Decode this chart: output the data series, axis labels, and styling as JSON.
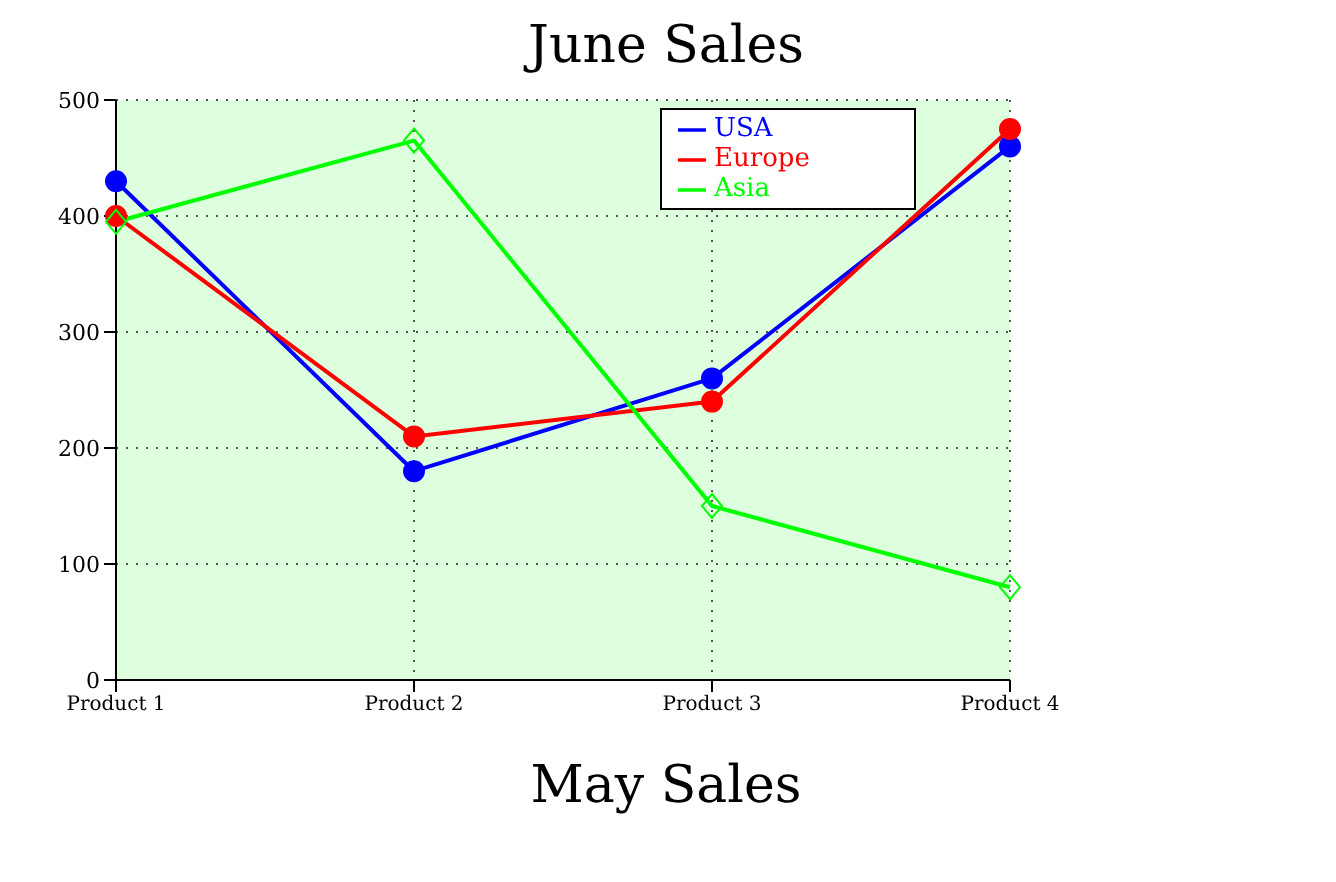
{
  "chart_data": {
    "type": "line",
    "title": "June Sales",
    "categories": [
      "Product 1",
      "Product 2",
      "Product 3",
      "Product 4"
    ],
    "series": [
      {
        "name": "USA",
        "color": "#0000ff",
        "values": [
          430,
          180,
          260,
          460
        ],
        "marker": "circle"
      },
      {
        "name": "Europe",
        "color": "#ff0000",
        "values": [
          400,
          210,
          240,
          475
        ],
        "marker": "circle"
      },
      {
        "name": "Asia",
        "color": "#00ff00",
        "values": [
          395,
          465,
          150,
          80
        ],
        "marker": "diamond"
      }
    ],
    "ylim": [
      0,
      500
    ],
    "yticks": [
      0,
      100,
      200,
      300,
      400,
      500
    ],
    "grid": true,
    "legend": "top right",
    "annotations": [
      "May Sales"
    ]
  }
}
